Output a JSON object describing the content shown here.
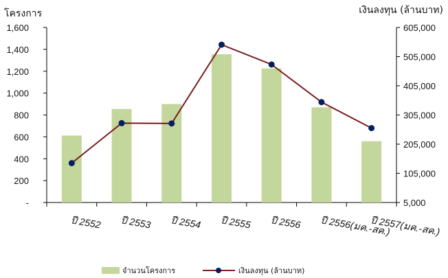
{
  "chart_data": {
    "type": "bar+line",
    "categories": [
      "ปี 2552",
      "ปี 2553",
      "ปี 2554",
      "ปี 2555",
      "ปี 2556",
      "ปี 2556(มค.-สค.)",
      "ปี 2557(มค.-สค.)"
    ],
    "left_axis": {
      "label": "โครงการ",
      "range": [
        0,
        1600
      ],
      "ticks": [
        "-",
        "200",
        "400",
        "600",
        "800",
        "1,000",
        "1,200",
        "1,400",
        "1,600"
      ]
    },
    "right_axis": {
      "label": "เงินลงทุน (ล้านบาท)",
      "range": [
        5000,
        605000
      ],
      "ticks": [
        "5,000",
        "105,000",
        "205,000",
        "305,000",
        "405,000",
        "505,000",
        "605,000"
      ]
    },
    "series": [
      {
        "name": "จำนวนโครงการ",
        "type": "bar",
        "axis": "left",
        "color": "#c3d69b",
        "values": [
          612,
          855,
          900,
          1355,
          1225,
          870,
          560
        ]
      },
      {
        "name": "เงินลงทุน (ล้านบาท)",
        "type": "line",
        "axis": "right",
        "color": "#7b1c1c",
        "marker_color": "#002060",
        "values": [
          140000,
          277000,
          276000,
          546000,
          478000,
          349000,
          260000
        ]
      }
    ],
    "legend": "bottom"
  }
}
